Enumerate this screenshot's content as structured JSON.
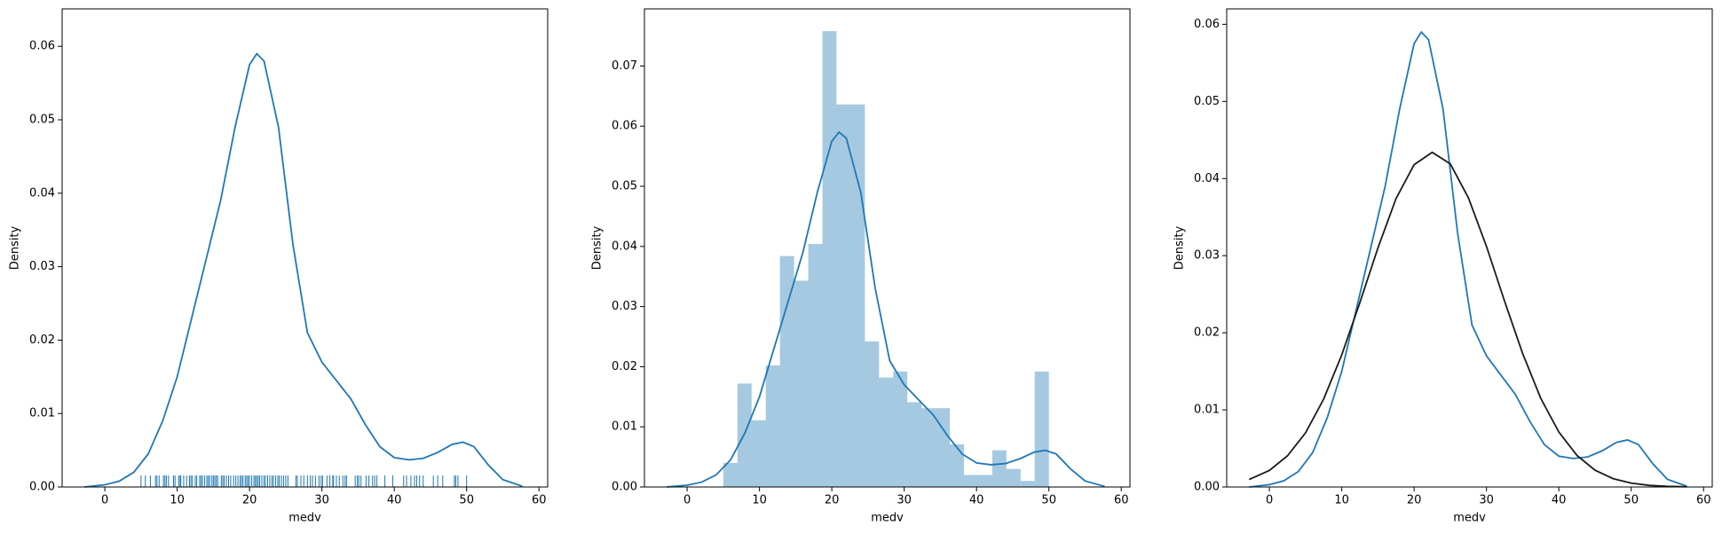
{
  "chart_data": [
    {
      "type": "kde",
      "xlabel": "medv",
      "ylabel": "Density",
      "xlim": [
        -5.9,
        61.2
      ],
      "ylim": [
        0,
        0.0651
      ],
      "xticks": [
        0,
        10,
        20,
        30,
        40,
        50,
        60
      ],
      "yticks": [
        {
          "value": 0,
          "label": "0.00"
        },
        0.01,
        0.02,
        0.03,
        0.04,
        0.05,
        0.06
      ],
      "series": [
        {
          "color": "#1f77b4",
          "x": [
            -2.8,
            0,
            2,
            4,
            6,
            8,
            10,
            12,
            14,
            16,
            18,
            20,
            21,
            22,
            24,
            26,
            28,
            30,
            32,
            34,
            36,
            38,
            40,
            42,
            44,
            46,
            48,
            49.5,
            51,
            53,
            55,
            57.7
          ],
          "values": [
            0,
            0.0003,
            0.0008,
            0.002,
            0.0045,
            0.009,
            0.015,
            0.023,
            0.031,
            0.039,
            0.049,
            0.0575,
            0.059,
            0.058,
            0.049,
            0.033,
            0.021,
            0.017,
            0.0145,
            0.012,
            0.0085,
            0.0055,
            0.004,
            0.0037,
            0.0039,
            0.0047,
            0.0058,
            0.0061,
            0.0055,
            0.003,
            0.001,
            0.0001
          ]
        }
      ],
      "rug": {
        "color": "#1f77b4",
        "values": [
          5,
          5.6,
          6.3,
          7,
          7.2,
          7.5,
          8.1,
          8.3,
          8.5,
          8.8,
          9.5,
          9.7,
          10.2,
          10.4,
          10.5,
          10.9,
          11.3,
          11.7,
          11.9,
          12.1,
          12.5,
          12.7,
          13.1,
          13.3,
          13.5,
          13.8,
          14.1,
          14.3,
          14.5,
          14.8,
          15,
          15.2,
          15.4,
          15.6,
          16.1,
          16.3,
          16.5,
          16.8,
          17.1,
          17.4,
          17.8,
          18.1,
          18.4,
          18.7,
          18.9,
          19.1,
          19.4,
          19.6,
          19.8,
          20,
          20.3,
          20.6,
          20.8,
          21,
          21.2,
          21.4,
          21.7,
          22,
          22.2,
          22.5,
          22.8,
          23.1,
          23.3,
          23.6,
          23.9,
          24.1,
          24.4,
          24.7,
          25,
          25.3,
          26.4,
          26.6,
          27.1,
          27.5,
          28,
          28.4,
          28.7,
          29.1,
          29.6,
          29.9,
          30.1,
          30.7,
          31.1,
          31.5,
          31.6,
          32,
          32.4,
          32.9,
          33.2,
          33.4,
          34.6,
          34.9,
          35.1,
          35.4,
          36.1,
          36.5,
          37,
          37.3,
          37.6,
          38.7,
          39.8,
          41.3,
          41.7,
          42.3,
          42.8,
          43.1,
          43.5,
          44,
          45.4,
          46,
          46.7,
          48.3,
          48.5,
          48.8,
          50
        ]
      }
    },
    {
      "type": "histogram",
      "xlabel": "medv",
      "ylabel": "Density",
      "xlim": [
        -5.9,
        61.2
      ],
      "ylim": [
        0,
        0.0795
      ],
      "xticks": [
        0,
        10,
        20,
        30,
        40,
        50,
        60
      ],
      "yticks": [
        {
          "value": 0,
          "label": "0.00"
        },
        0.01,
        0.02,
        0.03,
        0.04,
        0.05,
        0.06,
        0.07
      ],
      "color": "#1f77b4",
      "bins": [
        5,
        6.96,
        8.91,
        10.87,
        12.83,
        14.78,
        16.74,
        18.7,
        20.65,
        22.61,
        24.57,
        26.52,
        28.48,
        30.43,
        32.39,
        34.35,
        36.3,
        38.26,
        40.22,
        42.17,
        44.13,
        46.09,
        48.04,
        50
      ],
      "values": [
        0.004,
        0.0172,
        0.0111,
        0.0202,
        0.0384,
        0.0343,
        0.0404,
        0.0758,
        0.0636,
        0.0636,
        0.0242,
        0.0182,
        0.0192,
        0.0141,
        0.0131,
        0.0131,
        0.0071,
        0.002,
        0.002,
        0.0061,
        0.003,
        0.001,
        0.0192
      ],
      "series": [
        {
          "color": "#1f77b4",
          "x": [
            -2.8,
            0,
            2,
            4,
            6,
            8,
            10,
            12,
            14,
            16,
            18,
            20,
            21,
            22,
            24,
            26,
            28,
            30,
            32,
            34,
            36,
            38,
            40,
            42,
            44,
            46,
            48,
            49.5,
            51,
            53,
            55,
            57.7
          ],
          "values": [
            0,
            0.0003,
            0.0008,
            0.002,
            0.0045,
            0.009,
            0.015,
            0.023,
            0.031,
            0.039,
            0.049,
            0.0575,
            0.059,
            0.058,
            0.049,
            0.033,
            0.021,
            0.017,
            0.0145,
            0.012,
            0.0085,
            0.0055,
            0.004,
            0.0037,
            0.0039,
            0.0047,
            0.0058,
            0.0061,
            0.0055,
            0.003,
            0.001,
            0.0001
          ]
        }
      ]
    },
    {
      "type": "line",
      "xlabel": "medv",
      "ylabel": "Density",
      "xlim": [
        -5.9,
        61.2
      ],
      "ylim": [
        0,
        0.062
      ],
      "xticks": [
        0,
        10,
        20,
        30,
        40,
        50,
        60
      ],
      "yticks": [
        {
          "value": 0,
          "label": "0.00"
        },
        0.01,
        0.02,
        0.03,
        0.04,
        0.05,
        0.06
      ],
      "series": [
        {
          "color": "#1f77b4",
          "x": [
            -2.8,
            0,
            2,
            4,
            6,
            8,
            10,
            12,
            14,
            16,
            18,
            20,
            21,
            22,
            24,
            26,
            28,
            30,
            32,
            34,
            36,
            38,
            40,
            42,
            44,
            46,
            48,
            49.5,
            51,
            53,
            55,
            57.7
          ],
          "values": [
            0,
            0.0003,
            0.0008,
            0.002,
            0.0045,
            0.009,
            0.015,
            0.023,
            0.031,
            0.039,
            0.049,
            0.0575,
            0.059,
            0.058,
            0.049,
            0.033,
            0.021,
            0.017,
            0.0145,
            0.012,
            0.0085,
            0.0055,
            0.004,
            0.0037,
            0.0039,
            0.0047,
            0.0058,
            0.0061,
            0.0055,
            0.003,
            0.001,
            0.0001
          ]
        },
        {
          "color": "#1a1a1a",
          "x": [
            -2.8,
            0,
            2.5,
            5,
            7.5,
            10,
            12.5,
            15,
            17.5,
            20,
            22.5,
            25,
            27.5,
            30,
            32.5,
            35,
            37.5,
            40,
            42.5,
            45,
            47.5,
            50,
            52.5,
            55,
            57.7
          ],
          "values": [
            0.00097,
            0.00215,
            0.00404,
            0.00703,
            0.0114,
            0.01713,
            0.0239,
            0.031,
            0.0374,
            0.0418,
            0.0434,
            0.0419,
            0.0375,
            0.0312,
            0.0241,
            0.0173,
            0.0115,
            0.00713,
            0.0041,
            0.00218,
            0.00108,
            0.0005,
            0.00021,
            8e-05,
            3e-05
          ]
        }
      ]
    }
  ]
}
